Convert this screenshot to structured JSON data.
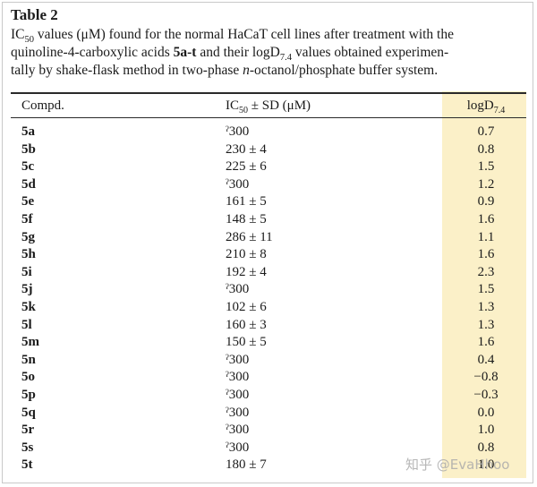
{
  "caption": {
    "title": "Table 2",
    "line1_a": "IC",
    "line1_sub": "50",
    "line1_b": " values (μM) found for the normal HaCaT cell lines after treatment with the",
    "line2_a": "quinoline-4-carboxylic acids ",
    "line2_bold": "5a-t",
    "line2_b": " and their logD",
    "line2_sub": "7.4",
    "line2_c": " values obtained experimen-",
    "line3_a": "tally by shake-flask method in two-phase ",
    "line3_italic": "n",
    "line3_b": "-octanol/phosphate buffer system."
  },
  "table": {
    "header_compd": "Compd.",
    "header_ic50_a": "IC",
    "header_ic50_sub": "50",
    "header_ic50_b": " ± SD (μM)",
    "header_logd_a": "logD",
    "header_logd_sub": "7.4",
    "rows": [
      {
        "compd": "5a",
        "ic50": "ˀ300",
        "logd": "0.7"
      },
      {
        "compd": "5b",
        "ic50": "230 ± 4",
        "logd": "0.8"
      },
      {
        "compd": "5c",
        "ic50": "225 ± 6",
        "logd": "1.5"
      },
      {
        "compd": "5d",
        "ic50": "ˀ300",
        "logd": "1.2"
      },
      {
        "compd": "5e",
        "ic50": "161 ± 5",
        "logd": "0.9"
      },
      {
        "compd": "5f",
        "ic50": "148 ± 5",
        "logd": "1.6"
      },
      {
        "compd": "5g",
        "ic50": "286 ± 11",
        "logd": "1.1"
      },
      {
        "compd": "5h",
        "ic50": "210 ± 8",
        "logd": "1.6"
      },
      {
        "compd": "5i",
        "ic50": "192 ± 4",
        "logd": "2.3"
      },
      {
        "compd": "5j",
        "ic50": "ˀ300",
        "logd": "1.5"
      },
      {
        "compd": "5k",
        "ic50": "102 ± 6",
        "logd": "1.3"
      },
      {
        "compd": "5l",
        "ic50": "160 ± 3",
        "logd": "1.3"
      },
      {
        "compd": "5m",
        "ic50": "150 ± 5",
        "logd": "1.6"
      },
      {
        "compd": "5n",
        "ic50": "ˀ300",
        "logd": "0.4"
      },
      {
        "compd": "5o",
        "ic50": "ˀ300",
        "logd": "−0.8"
      },
      {
        "compd": "5p",
        "ic50": "ˀ300",
        "logd": "−0.3"
      },
      {
        "compd": "5q",
        "ic50": "ˀ300",
        "logd": "0.0"
      },
      {
        "compd": "5r",
        "ic50": "ˀ300",
        "logd": "1.0"
      },
      {
        "compd": "5s",
        "ic50": "ˀ300",
        "logd": "0.8"
      },
      {
        "compd": "5t",
        "ic50": "180 ± 7",
        "logd": "1.0"
      }
    ]
  },
  "watermark": "知乎 @EvaHhoo",
  "colors": {
    "highlight": "#fbf0c8",
    "rule": "#2a2a2a"
  }
}
